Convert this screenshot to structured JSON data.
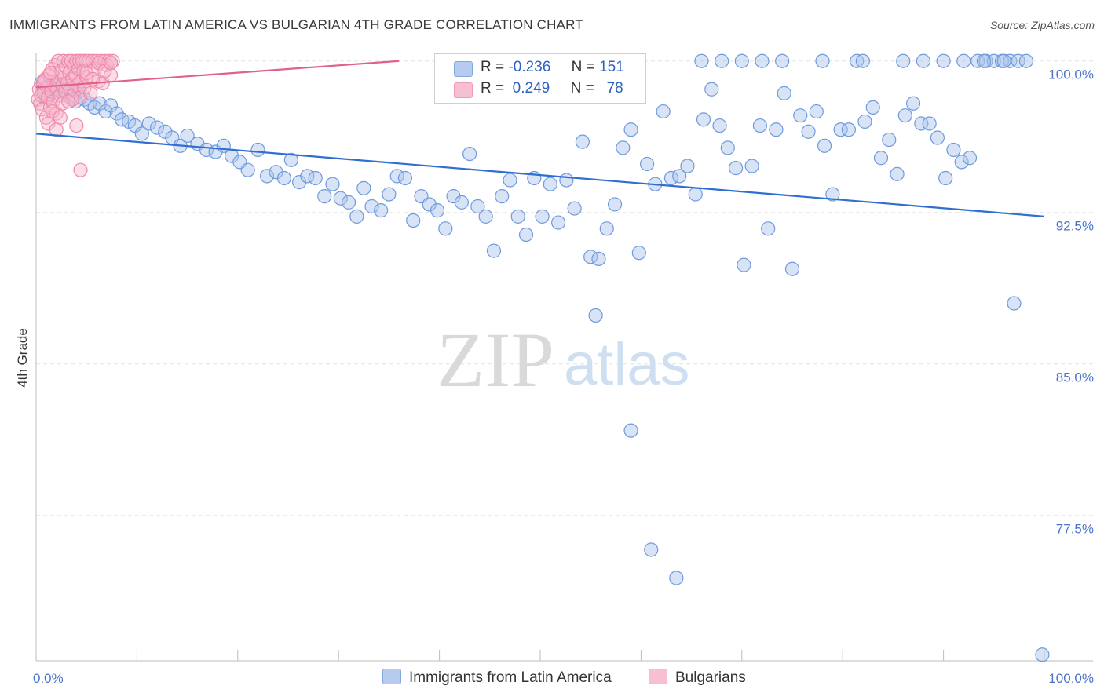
{
  "title": "IMMIGRANTS FROM LATIN AMERICA VS BULGARIAN 4TH GRADE CORRELATION CHART",
  "source": "Source: ZipAtlas.com",
  "watermark": {
    "zip": "ZIP",
    "atlas": "atlas"
  },
  "colors": {
    "blue_fill": "#a9c4ec",
    "blue_stroke": "#6f9ade",
    "blue_line": "#2f6fd0",
    "pink_fill": "#f6b6cb",
    "pink_stroke": "#ee8aaa",
    "pink_line": "#e0618a",
    "grid": "#e3e3e3",
    "tick_text": "#4a74c9"
  },
  "legend": {
    "blue": {
      "r_label": "R =",
      "r_value": "-0.236",
      "n_label": "N =",
      "n_value": "151"
    },
    "pink": {
      "r_label": "R =",
      "r_value": "0.249",
      "n_label": "N =",
      "n_value": "78"
    }
  },
  "bottom_legend": {
    "blue": "Immigrants from Latin America",
    "pink": "Bulgarians"
  },
  "chart_data": {
    "type": "scatter",
    "title": "IMMIGRANTS FROM LATIN AMERICA VS BULGARIAN 4TH GRADE CORRELATION CHART",
    "ylabel": "4th Grade",
    "xlabel": "",
    "xlim": [
      0,
      100
    ],
    "ylim": [
      70.3,
      100.3
    ],
    "x_tick_labels": [
      "0.0%",
      "100.0%"
    ],
    "y_ticks": [
      100.0,
      92.5,
      85.0,
      77.5
    ],
    "y_tick_labels": [
      "100.0%",
      "92.5%",
      "85.0%",
      "77.5%"
    ],
    "series": [
      {
        "name": "Immigrants from Latin America",
        "color": "blue",
        "trend": {
          "x": [
            0,
            100
          ],
          "y": [
            96.4,
            92.3
          ]
        },
        "points": [
          [
            0.5,
            98.9
          ],
          [
            0.8,
            98.6
          ],
          [
            1.0,
            98.2
          ],
          [
            1.3,
            98.8
          ],
          [
            1.6,
            98.7
          ],
          [
            1.9,
            98.4
          ],
          [
            2.2,
            98.8
          ],
          [
            2.6,
            98.6
          ],
          [
            3.0,
            98.4
          ],
          [
            3.4,
            98.2
          ],
          [
            3.9,
            98.0
          ],
          [
            4.3,
            98.5
          ],
          [
            4.8,
            98.1
          ],
          [
            5.3,
            97.9
          ],
          [
            5.8,
            97.7
          ],
          [
            6.3,
            97.9
          ],
          [
            6.9,
            97.5
          ],
          [
            7.4,
            97.8
          ],
          [
            8.0,
            97.4
          ],
          [
            8.5,
            97.1
          ],
          [
            9.2,
            97.0
          ],
          [
            9.8,
            96.8
          ],
          [
            10.5,
            96.4
          ],
          [
            11.2,
            96.9
          ],
          [
            12.0,
            96.7
          ],
          [
            12.8,
            96.5
          ],
          [
            13.5,
            96.2
          ],
          [
            14.3,
            95.8
          ],
          [
            15.0,
            96.3
          ],
          [
            16.0,
            95.9
          ],
          [
            16.9,
            95.6
          ],
          [
            17.8,
            95.5
          ],
          [
            18.6,
            95.8
          ],
          [
            19.4,
            95.3
          ],
          [
            20.2,
            95.0
          ],
          [
            21.0,
            94.6
          ],
          [
            22.0,
            95.6
          ],
          [
            22.9,
            94.3
          ],
          [
            23.8,
            94.5
          ],
          [
            24.6,
            94.2
          ],
          [
            25.3,
            95.1
          ],
          [
            26.1,
            94.0
          ],
          [
            26.9,
            94.3
          ],
          [
            27.7,
            94.2
          ],
          [
            28.6,
            93.3
          ],
          [
            29.4,
            93.9
          ],
          [
            30.2,
            93.2
          ],
          [
            31.0,
            93.0
          ],
          [
            31.8,
            92.3
          ],
          [
            32.5,
            93.7
          ],
          [
            33.3,
            92.8
          ],
          [
            34.2,
            92.6
          ],
          [
            35.0,
            93.4
          ],
          [
            35.8,
            94.3
          ],
          [
            36.6,
            94.2
          ],
          [
            37.4,
            92.1
          ],
          [
            38.2,
            93.3
          ],
          [
            39.0,
            92.9
          ],
          [
            39.8,
            92.6
          ],
          [
            40.6,
            91.7
          ],
          [
            41.4,
            93.3
          ],
          [
            42.2,
            93.0
          ],
          [
            43.0,
            95.4
          ],
          [
            43.8,
            92.8
          ],
          [
            44.6,
            92.3
          ],
          [
            45.4,
            90.6
          ],
          [
            46.2,
            93.3
          ],
          [
            47.0,
            94.1
          ],
          [
            47.8,
            92.3
          ],
          [
            48.6,
            91.4
          ],
          [
            49.4,
            94.2
          ],
          [
            50.2,
            92.3
          ],
          [
            51.0,
            93.9
          ],
          [
            51.8,
            92.0
          ],
          [
            52.6,
            94.1
          ],
          [
            53.4,
            92.7
          ],
          [
            54.2,
            96.0
          ],
          [
            55.0,
            90.3
          ],
          [
            55.8,
            90.2
          ],
          [
            56.6,
            91.7
          ],
          [
            57.4,
            92.9
          ],
          [
            58.2,
            95.7
          ],
          [
            59.0,
            96.6
          ],
          [
            59.8,
            90.5
          ],
          [
            60.6,
            94.9
          ],
          [
            61.4,
            93.9
          ],
          [
            62.2,
            97.5
          ],
          [
            63.0,
            94.2
          ],
          [
            63.8,
            94.3
          ],
          [
            64.6,
            94.8
          ],
          [
            65.4,
            93.4
          ],
          [
            66.2,
            97.1
          ],
          [
            67.0,
            98.6
          ],
          [
            67.8,
            96.8
          ],
          [
            68.6,
            95.7
          ],
          [
            69.4,
            94.7
          ],
          [
            70.2,
            89.9
          ],
          [
            71.0,
            94.8
          ],
          [
            71.8,
            96.8
          ],
          [
            72.6,
            91.7
          ],
          [
            73.4,
            96.6
          ],
          [
            74.2,
            98.4
          ],
          [
            75.0,
            89.7
          ],
          [
            75.8,
            97.3
          ],
          [
            76.6,
            96.5
          ],
          [
            77.4,
            97.5
          ],
          [
            78.2,
            95.8
          ],
          [
            79.0,
            93.4
          ],
          [
            79.8,
            96.6
          ],
          [
            80.6,
            96.6
          ],
          [
            81.4,
            100.0
          ],
          [
            82.2,
            97.0
          ],
          [
            83.0,
            97.7
          ],
          [
            83.8,
            95.2
          ],
          [
            84.6,
            96.1
          ],
          [
            85.4,
            94.4
          ],
          [
            86.2,
            97.3
          ],
          [
            87.0,
            97.9
          ],
          [
            87.8,
            96.9
          ],
          [
            88.6,
            96.9
          ],
          [
            89.4,
            96.2
          ],
          [
            90.2,
            94.2
          ],
          [
            91.0,
            95.6
          ],
          [
            91.8,
            95.0
          ],
          [
            92.6,
            95.2
          ],
          [
            93.4,
            100.0
          ],
          [
            94.2,
            100.0
          ],
          [
            95.0,
            100.0
          ],
          [
            95.8,
            100.0
          ],
          [
            96.6,
            100.0
          ],
          [
            97.4,
            100.0
          ],
          [
            98.2,
            100.0
          ],
          [
            55.5,
            87.4
          ],
          [
            59.0,
            81.7
          ],
          [
            61.0,
            75.8
          ],
          [
            63.5,
            74.4
          ],
          [
            97.0,
            88.0
          ],
          [
            99.8,
            70.6
          ],
          [
            66.0,
            100.0
          ],
          [
            70.0,
            100.0
          ],
          [
            74.0,
            100.0
          ],
          [
            78.0,
            100.0
          ],
          [
            82.0,
            100.0
          ],
          [
            86.0,
            100.0
          ],
          [
            90.0,
            100.0
          ],
          [
            94.0,
            100.0
          ],
          [
            88.0,
            100.0
          ],
          [
            92.0,
            100.0
          ],
          [
            96.0,
            100.0
          ],
          [
            72.0,
            100.0
          ],
          [
            68.0,
            100.0
          ]
        ]
      },
      {
        "name": "Bulgarians",
        "color": "pink",
        "trend": {
          "x": [
            0,
            36
          ],
          "y": [
            98.7,
            100.0
          ]
        },
        "points": [
          [
            0.2,
            98.1
          ],
          [
            0.3,
            98.6
          ],
          [
            0.4,
            97.9
          ],
          [
            0.5,
            98.3
          ],
          [
            0.6,
            97.6
          ],
          [
            0.7,
            98.9
          ],
          [
            0.8,
            98.4
          ],
          [
            0.9,
            99.1
          ],
          [
            1.0,
            97.2
          ],
          [
            1.1,
            98.7
          ],
          [
            1.2,
            98.2
          ],
          [
            1.3,
            99.3
          ],
          [
            1.4,
            97.7
          ],
          [
            1.5,
            98.5
          ],
          [
            1.6,
            99.6
          ],
          [
            1.7,
            98.0
          ],
          [
            1.8,
            98.8
          ],
          [
            1.9,
            99.8
          ],
          [
            2.0,
            97.4
          ],
          [
            2.1,
            98.6
          ],
          [
            2.2,
            100.0
          ],
          [
            2.3,
            99.0
          ],
          [
            2.4,
            98.3
          ],
          [
            2.5,
            99.5
          ],
          [
            2.6,
            98.8
          ],
          [
            2.7,
            100.0
          ],
          [
            2.8,
            99.2
          ],
          [
            2.9,
            98.5
          ],
          [
            3.0,
            99.7
          ],
          [
            3.1,
            98.9
          ],
          [
            3.2,
            100.0
          ],
          [
            3.3,
            99.4
          ],
          [
            3.4,
            98.6
          ],
          [
            3.5,
            100.0
          ],
          [
            3.6,
            99.1
          ],
          [
            3.7,
            98.3
          ],
          [
            3.8,
            99.8
          ],
          [
            3.9,
            99.3
          ],
          [
            4.0,
            100.0
          ],
          [
            4.1,
            98.8
          ],
          [
            4.2,
            99.6
          ],
          [
            4.3,
            100.0
          ],
          [
            4.4,
            98.2
          ],
          [
            4.5,
            99.0
          ],
          [
            4.6,
            100.0
          ],
          [
            4.7,
            99.5
          ],
          [
            4.8,
            98.7
          ],
          [
            4.9,
            100.0
          ],
          [
            5.0,
            99.2
          ],
          [
            5.2,
            100.0
          ],
          [
            5.4,
            98.4
          ],
          [
            5.6,
            100.0
          ],
          [
            5.8,
            99.6
          ],
          [
            6.0,
            100.0
          ],
          [
            6.2,
            99.0
          ],
          [
            6.4,
            100.0
          ],
          [
            6.6,
            98.9
          ],
          [
            6.8,
            100.0
          ],
          [
            7.0,
            99.8
          ],
          [
            7.2,
            100.0
          ],
          [
            7.4,
            99.3
          ],
          [
            7.6,
            100.0
          ],
          [
            1.2,
            96.9
          ],
          [
            1.6,
            97.5
          ],
          [
            2.0,
            96.6
          ],
          [
            2.4,
            97.2
          ],
          [
            3.6,
            98.1
          ],
          [
            4.0,
            96.8
          ],
          [
            4.4,
            94.6
          ],
          [
            5.0,
            99.4
          ],
          [
            5.6,
            99.1
          ],
          [
            6.2,
            99.9
          ],
          [
            6.8,
            99.5
          ],
          [
            7.4,
            99.9
          ],
          [
            0.8,
            99.0
          ],
          [
            1.4,
            99.4
          ],
          [
            2.6,
            97.9
          ],
          [
            3.2,
            98.0
          ]
        ]
      }
    ]
  }
}
